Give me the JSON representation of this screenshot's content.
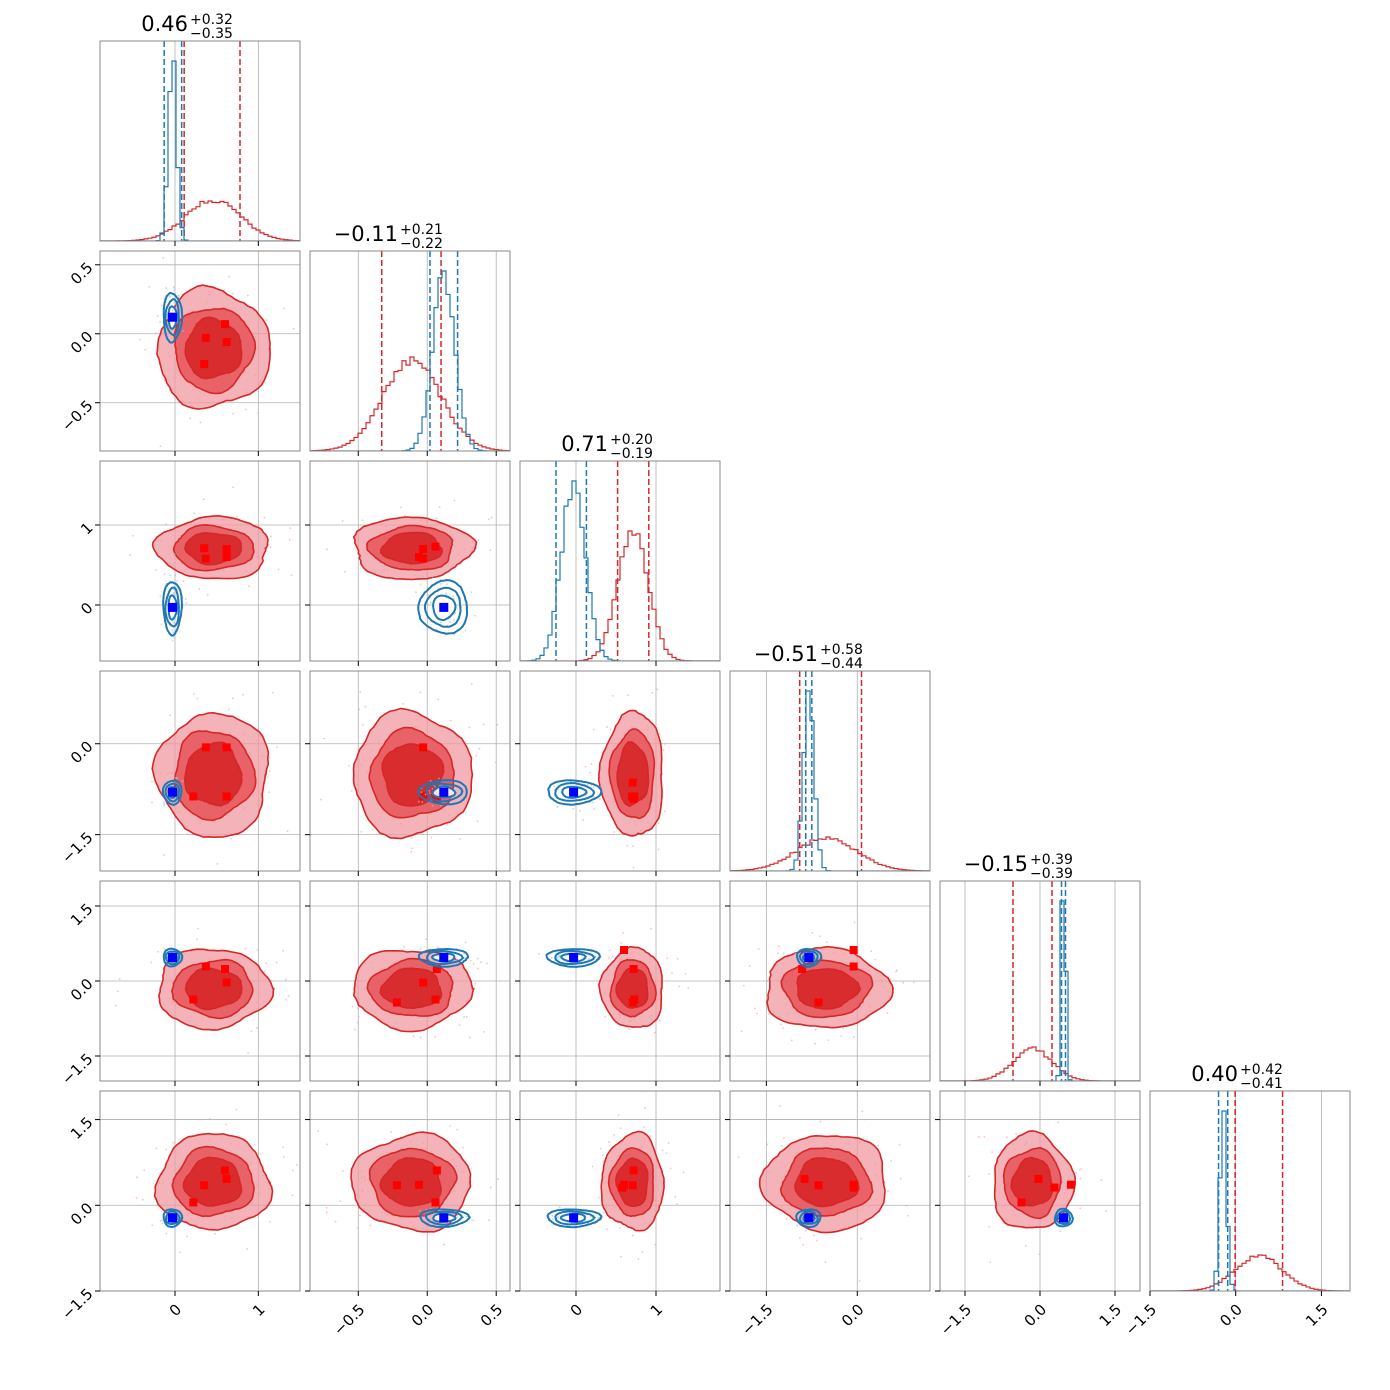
{
  "colors": {
    "red": "#d62728",
    "red_light": "#f09aa0",
    "red_mid": "#e8595f",
    "blue": "#1f77b4",
    "blue_marker": "#0000ff",
    "red_marker": "#ff0000",
    "grid": "#b0b0b0",
    "frame": "#888888"
  },
  "chart_data": {
    "type": "corner",
    "n_params": 6,
    "ranges": [
      [
        -0.9,
        1.5
      ],
      [
        -0.85,
        0.6
      ],
      [
        -0.7,
        1.8
      ],
      [
        -2.1,
        1.2
      ],
      [
        -2.0,
        2.0
      ],
      [
        -1.5,
        2.0
      ]
    ],
    "ticks": [
      {
        "values": [
          0,
          1
        ],
        "labels": [
          "0",
          "1"
        ]
      },
      {
        "values": [
          -0.5,
          0.0,
          0.5
        ],
        "labels": [
          "−0.5",
          "0.0",
          "0.5"
        ]
      },
      {
        "values": [
          0,
          1
        ],
        "labels": [
          "0",
          "1"
        ]
      },
      {
        "values": [
          -1.5,
          0.0
        ],
        "labels": [
          "−1.5",
          "0.0"
        ]
      },
      {
        "values": [
          -1.5,
          0.0,
          1.5
        ],
        "labels": [
          "−1.5",
          "0.0",
          "1.5"
        ]
      },
      {
        "values": [
          -1.5,
          0.0,
          1.5
        ],
        "labels": [
          "−1.5",
          "0.0",
          "1.5"
        ]
      }
    ],
    "titles": [
      {
        "median": "0.46",
        "plus": "+0.32",
        "minus": "−0.35"
      },
      {
        "median": "−0.11",
        "plus": "+0.21",
        "minus": "−0.22"
      },
      {
        "median": "0.71",
        "plus": "+0.20",
        "minus": "−0.19"
      },
      {
        "median": "−0.51",
        "plus": "+0.58",
        "minus": "−0.44"
      },
      {
        "median": "−0.15",
        "plus": "+0.39",
        "minus": "−0.39"
      },
      {
        "median": "0.40",
        "plus": "+0.42",
        "minus": "−0.41"
      }
    ],
    "series": [
      {
        "color": "#d62728",
        "mean": [
          0.46,
          -0.11,
          0.71,
          -0.51,
          -0.15,
          0.4
        ],
        "sd": [
          0.33,
          0.21,
          0.19,
          0.5,
          0.39,
          0.41
        ],
        "quantiles": [
          [
            0.11,
            0.78
          ],
          [
            -0.33,
            0.1
          ],
          [
            0.52,
            0.91
          ],
          [
            -0.95,
            0.07
          ],
          [
            -0.54,
            0.24
          ],
          [
            -0.01,
            0.82
          ]
        ],
        "scatter_markers": [
          [
            0.22,
            0.6,
            0.35,
            0.62,
            0.37,
            0.62
          ],
          [
            0.07,
            -0.22,
            -0.06,
            -0.03,
            -0.03,
            0.06
          ],
          [
            0.71,
            0.6,
            0.58,
            0.7,
            0.73,
            0.72
          ],
          [
            -0.06,
            -0.06,
            -0.87,
            -0.87,
            -0.91,
            -0.64
          ],
          [
            0.29,
            -0.03,
            -0.37,
            0.24,
            -0.43,
            0.62
          ],
          [
            0.46,
            0.05,
            0.61,
            0.35,
            0.36,
            0.31
          ]
        ]
      },
      {
        "color": "#1f77b4",
        "mean": [
          -0.03,
          0.12,
          -0.03,
          -0.8,
          0.47,
          -0.22
        ],
        "sd": [
          0.05,
          0.08,
          0.15,
          0.09,
          0.04,
          0.06
        ],
        "quantiles": [
          [
            -0.13,
            0.08
          ],
          [
            0.02,
            0.22
          ],
          [
            -0.25,
            0.13
          ],
          [
            -0.85,
            -0.75
          ],
          [
            0.43,
            0.51
          ],
          [
            -0.3,
            -0.14
          ]
        ],
        "truth": [
          -0.03,
          0.12,
          -0.03,
          -0.8,
          0.47,
          -0.22
        ]
      }
    ]
  }
}
